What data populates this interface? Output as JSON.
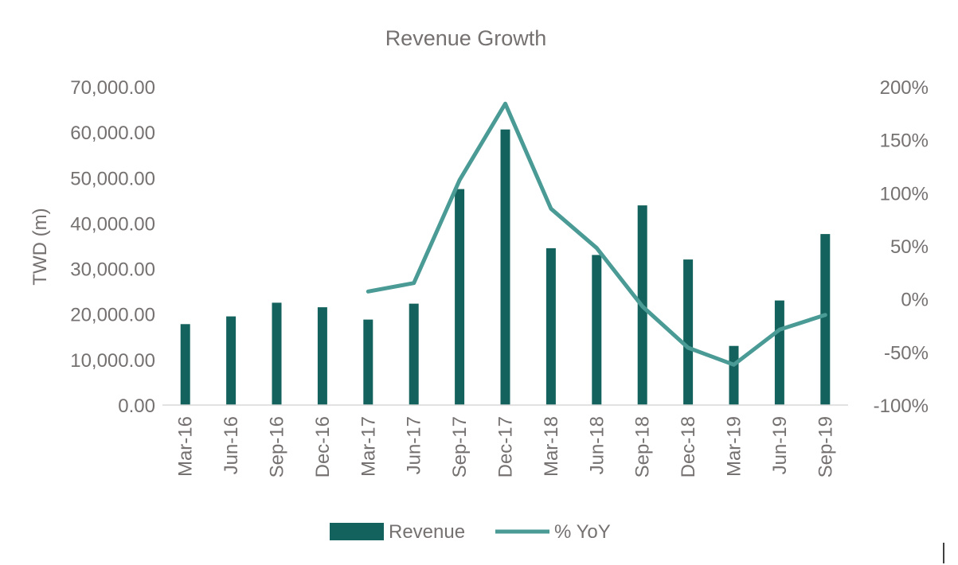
{
  "chart_data": {
    "type": "bar+line",
    "title": "Revenue Growth",
    "xlabel": "",
    "ylabel": "TWD (m)",
    "y2label": "",
    "ylim": [
      0,
      70000
    ],
    "y2lim": [
      -1.0,
      2.0
    ],
    "y_ticks": [
      "0.00",
      "10,000.00",
      "20,000.00",
      "30,000.00",
      "40,000.00",
      "50,000.00",
      "60,000.00",
      "70,000.00"
    ],
    "y2_ticks": [
      "-100%",
      "-50%",
      "0%",
      "50%",
      "100%",
      "150%",
      "200%"
    ],
    "categories": [
      "Mar-16",
      "Jun-16",
      "Sep-16",
      "Dec-16",
      "Mar-17",
      "Jun-17",
      "Sep-17",
      "Dec-17",
      "Mar-18",
      "Jun-18",
      "Sep-18",
      "Dec-18",
      "Mar-19",
      "Jun-19",
      "Sep-19"
    ],
    "series": [
      {
        "name": "Revenue",
        "kind": "bar",
        "axis": "left",
        "color": "#14625D",
        "values": [
          17800,
          19500,
          22500,
          21500,
          18800,
          22300,
          47500,
          60600,
          34500,
          33000,
          43900,
          32000,
          13000,
          23000,
          37600
        ]
      },
      {
        "name": "% YoY",
        "kind": "line",
        "axis": "right",
        "color": "#4A9A95",
        "values": [
          null,
          null,
          null,
          null,
          0.07,
          0.15,
          1.12,
          1.84,
          0.85,
          0.48,
          -0.07,
          -0.46,
          -0.62,
          -0.29,
          -0.15
        ]
      }
    ],
    "legend_position": "bottom",
    "grid": false
  }
}
